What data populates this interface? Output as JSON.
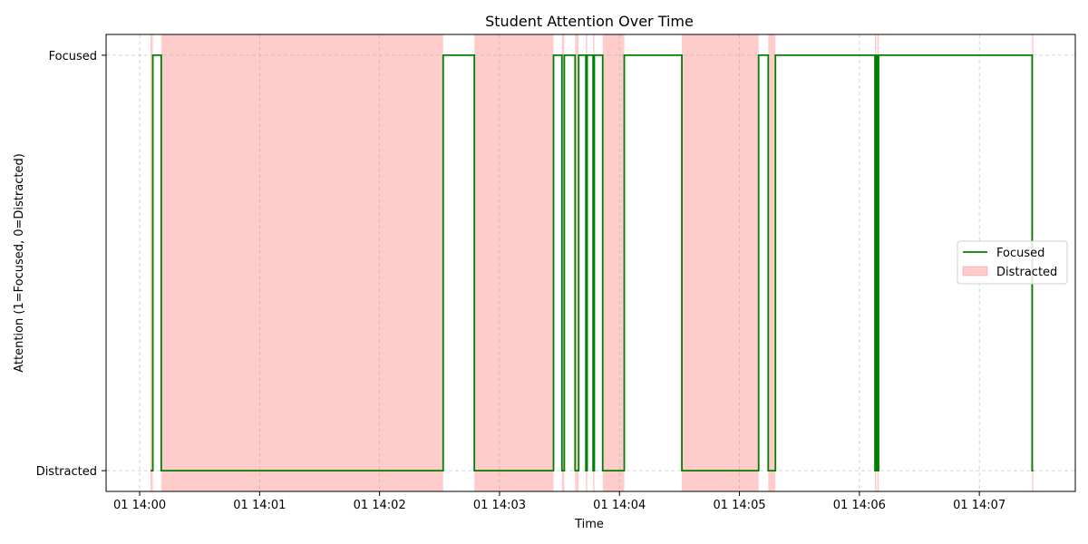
{
  "chart_data": {
    "type": "line",
    "title": "Student Attention Over Time",
    "xlabel": "Time",
    "ylabel": "Attention (1=Focused, 0=Distracted)",
    "x_ticks": [
      "01 14:00",
      "01 14:01",
      "01 14:02",
      "01 14:03",
      "01 14:04",
      "01 14:05",
      "01 14:06",
      "01 14:07"
    ],
    "x_tick_minutes": [
      0,
      1,
      2,
      3,
      4,
      5,
      6,
      7
    ],
    "y_ticks": [
      {
        "value": 1,
        "label": "Focused"
      },
      {
        "value": 0,
        "label": "Distracted"
      }
    ],
    "xlim_minutes": [
      -0.28,
      7.8
    ],
    "ylim": [
      -0.05,
      1.05
    ],
    "grid": true,
    "legend_position": "center-right",
    "series": [
      {
        "name": "Focused",
        "color": "#008000",
        "step": "post",
        "points": [
          [
            0.09,
            0
          ],
          [
            0.11,
            1
          ],
          [
            0.18,
            0
          ],
          [
            2.53,
            1
          ],
          [
            2.79,
            0
          ],
          [
            3.45,
            1
          ],
          [
            3.52,
            0
          ],
          [
            3.54,
            1
          ],
          [
            3.63,
            0
          ],
          [
            3.66,
            1
          ],
          [
            3.72,
            0
          ],
          [
            3.73,
            1
          ],
          [
            3.78,
            0
          ],
          [
            3.79,
            1
          ],
          [
            3.86,
            0
          ],
          [
            4.04,
            1
          ],
          [
            4.52,
            0
          ],
          [
            5.16,
            1
          ],
          [
            5.24,
            0
          ],
          [
            5.3,
            1
          ],
          [
            6.13,
            0
          ],
          [
            6.14,
            1
          ],
          [
            6.15,
            0
          ],
          [
            6.16,
            1
          ],
          [
            7.44,
            0
          ],
          [
            7.45,
            0
          ]
        ]
      },
      {
        "name": "Distracted",
        "type": "span",
        "color": "#ff0000",
        "alpha": 0.2,
        "intervals": [
          [
            0.09,
            0.11
          ],
          [
            0.18,
            2.53
          ],
          [
            2.79,
            3.45
          ],
          [
            3.52,
            3.54
          ],
          [
            3.63,
            3.66
          ],
          [
            3.72,
            3.73
          ],
          [
            3.78,
            3.79
          ],
          [
            3.86,
            4.04
          ],
          [
            4.52,
            5.16
          ],
          [
            5.24,
            5.3
          ],
          [
            6.13,
            6.14
          ],
          [
            6.15,
            6.16
          ],
          [
            7.44,
            7.45
          ]
        ]
      }
    ]
  }
}
